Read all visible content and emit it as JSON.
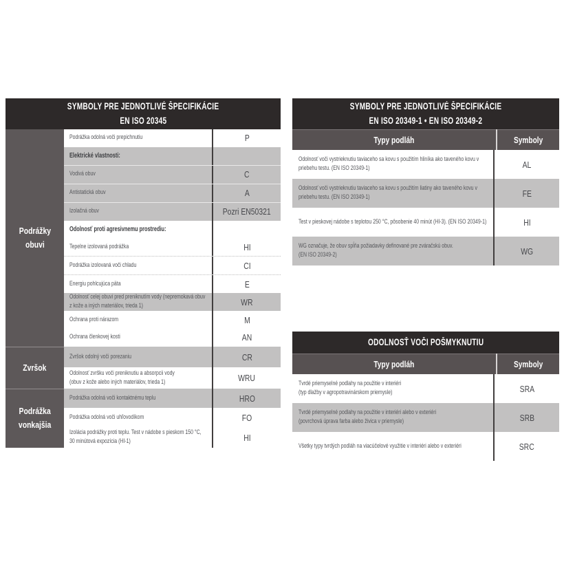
{
  "colors": {
    "header_bg": "#2d2929",
    "subheader_bg": "#575152",
    "category_bg": "#5d5859",
    "gray_row": "#c2c1c1",
    "white_row": "#ffffff",
    "divider_dark": "#413e3e",
    "body_text": "#55565a",
    "header_text": "#ffffff"
  },
  "left_table": {
    "title_lines": [
      "SYMBOLY PRE JEDNOTLIVÉ ŠPECIFIKÁCIE",
      "EN ISO 20345"
    ],
    "groups": [
      {
        "category_lines": [
          "Podrážky",
          "obuvi"
        ],
        "rows": [
          {
            "lines": [
              "Podrážka odolná voči prepichnutiu"
            ],
            "symbol": "P",
            "shade": "white",
            "bold": false,
            "sep": "none"
          },
          {
            "lines": [
              "Elektrické vlastnosti:"
            ],
            "symbol": "",
            "shade": "gray",
            "bold": true,
            "sep": "light"
          },
          {
            "lines": [
              "Vodivá obuv"
            ],
            "symbol": "C",
            "shade": "gray",
            "bold": false,
            "sep": "light"
          },
          {
            "lines": [
              "Antistatická obuv"
            ],
            "symbol": "A",
            "shade": "gray",
            "bold": false,
            "sep": "light"
          },
          {
            "lines": [
              "Izolačná obuv"
            ],
            "symbol": "Pozri EN50321",
            "shade": "gray",
            "bold": false,
            "sep": "none"
          },
          {
            "lines": [
              "Odolnosť proti agresivnemu prostrediu:"
            ],
            "symbol": "",
            "shade": "white",
            "bold": true,
            "sep": "none"
          },
          {
            "lines": [
              "Tepelne izolovaná podrážka"
            ],
            "symbol": "HI",
            "shade": "white",
            "bold": false,
            "sep": "dotted"
          },
          {
            "lines": [
              "Podrážka izolovaná voči chladu"
            ],
            "symbol": "CI",
            "shade": "white",
            "bold": false,
            "sep": "dotted"
          },
          {
            "lines": [
              "Energiu pohlcujúca päta"
            ],
            "symbol": "E",
            "shade": "white",
            "bold": false,
            "sep": "none"
          },
          {
            "lines": [
              "Odolnosť celej obuvi pred preniknutím vody (nepremokavá obuv z kože a iných materiálov, trieda 1)"
            ],
            "symbol": "WR",
            "shade": "gray",
            "bold": false,
            "sep": "none"
          },
          {
            "lines": [
              "Ochrana proti nárazom"
            ],
            "symbol": "M",
            "shade": "white",
            "bold": false,
            "sep": "none"
          },
          {
            "lines": [
              "Ochrana členkovej kosti"
            ],
            "symbol": "AN",
            "shade": "white",
            "bold": false,
            "sep": "none"
          }
        ]
      },
      {
        "category_lines": [
          "Zvršok"
        ],
        "rows": [
          {
            "lines": [
              "Zvršok odolný voči porezaniu"
            ],
            "symbol": "CR",
            "shade": "gray",
            "bold": false,
            "sep": "none"
          },
          {
            "lines": [
              "Odolnosť zvršku voči preniknutiu a absorpcii vody",
              "(obuv z kože alebo iných materiálov, trieda 1)"
            ],
            "symbol": "WRU",
            "shade": "white",
            "bold": false,
            "sep": "none"
          }
        ]
      },
      {
        "category_lines": [
          "Podrážka",
          "vonkajšia"
        ],
        "rows": [
          {
            "lines": [
              "Podrážka odolná voči kontaktnému teplu"
            ],
            "symbol": "HRO",
            "shade": "gray",
            "bold": false,
            "sep": "none"
          },
          {
            "lines": [
              "Podrážka odolná voči uhľovodíkom"
            ],
            "symbol": "FO",
            "shade": "white",
            "bold": false,
            "sep": "none"
          },
          {
            "lines": [
              "Izolácia podrážky proti teplu. Test v nádobe s pieskom 150 °C, 30 minútová expozícia (HI-1)"
            ],
            "symbol": "HI",
            "shade": "white",
            "bold": false,
            "sep": "none"
          }
        ]
      }
    ]
  },
  "right_table_1": {
    "title_lines": [
      "SYMBOLY PRE JEDNOTLIVÉ ŠPECIFIKÁCIE",
      "EN ISO 20349-1 • EN ISO 20349-2"
    ],
    "col_floor": "Typy podláh",
    "col_symbol": "Symboly",
    "rows": [
      {
        "lines": [
          "Odolnosť voči vystrieknutiu taviaceho sa kovu s použitím hliníka ako taveného kovu v priebehu testu. (EN ISO 20349-1)"
        ],
        "symbol": "AL",
        "shade": "white"
      },
      {
        "lines": [
          "Odolnosť voči vystrieknutiu taviaceho sa kovu s použitím liatiny ako taveného kovu v priebehu testu. (EN ISO 20349-1)"
        ],
        "symbol": "FE",
        "shade": "gray"
      },
      {
        "lines": [
          "Test v pieskovej nádobe s teplotou 250 °C, pôsobenie 40 minút (HI-3). (EN ISO 20349-1)"
        ],
        "symbol": "HI",
        "shade": "white"
      },
      {
        "lines": [
          "WG označuje, že obuv spĺňa požiadavky definované pre zváračskú obuv.",
          "(EN ISO 20349-2)"
        ],
        "symbol": "WG",
        "shade": "gray"
      }
    ]
  },
  "right_table_2": {
    "title_lines": [
      "ODOLNOSŤ VOČI POŠMYKNUTIU"
    ],
    "col_floor": "Typy podláh",
    "col_symbol": "Symboly",
    "rows": [
      {
        "lines": [
          "Tvrdé priemyselné podlahy na použitie v interiéri",
          "(typ dlažby v agropotravinárskom priemysle)"
        ],
        "symbol": "SRA",
        "shade": "white"
      },
      {
        "lines": [
          "Tvrdé priemyselné podlahy na použitie v interiéri alebo v exteriéri",
          "(povrchová úprava farba alebo živica v priemysle)"
        ],
        "symbol": "SRB",
        "shade": "gray"
      },
      {
        "lines": [
          "Všetky typy tvrdých podláh na viacúčelové využitie v interiéri alebo v exteriéri"
        ],
        "symbol": "SRC",
        "shade": "white"
      }
    ]
  }
}
